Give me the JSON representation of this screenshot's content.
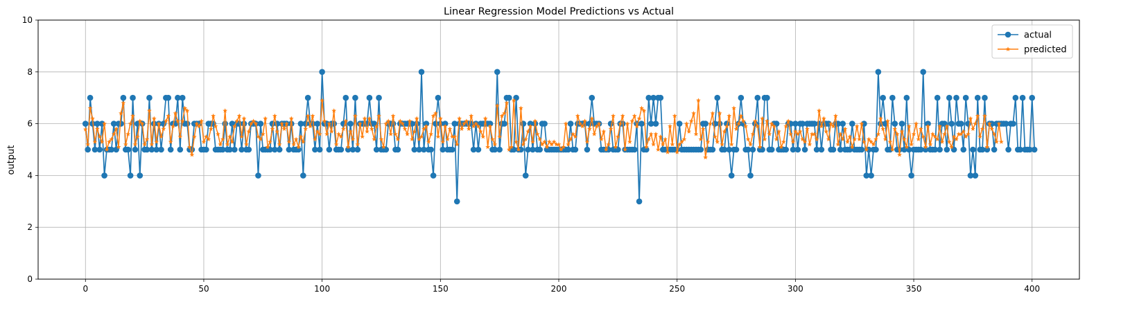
{
  "chart_data": {
    "type": "line",
    "title": "Linear Regression Model Predictions vs Actual",
    "xlabel": "",
    "ylabel": "output",
    "xlim": [
      -20,
      420
    ],
    "ylim": [
      0,
      10
    ],
    "xticks": [
      0,
      50,
      100,
      150,
      200,
      250,
      300,
      350,
      400
    ],
    "yticks": [
      0,
      2,
      4,
      6,
      8,
      10
    ],
    "grid": true,
    "legend_position": "top-right",
    "colors": {
      "actual": "#1f77b4",
      "predicted": "#ff7f0e"
    },
    "x_start": 0,
    "series": [
      {
        "name": "actual",
        "marker": "circle",
        "values": [
          6,
          5,
          7,
          6,
          5,
          6,
          5,
          6,
          4,
          5,
          5,
          5,
          6,
          5,
          6,
          6,
          7,
          5,
          5,
          4,
          7,
          5,
          6,
          4,
          6,
          5,
          5,
          7,
          5,
          6,
          5,
          6,
          5,
          6,
          7,
          7,
          5,
          6,
          6,
          7,
          5,
          7,
          6,
          6,
          5,
          5,
          6,
          6,
          6,
          5,
          5,
          5,
          6,
          6,
          6,
          5,
          5,
          5,
          5,
          6,
          5,
          5,
          6,
          5,
          6,
          6,
          5,
          6,
          5,
          5,
          6,
          6,
          6,
          4,
          6,
          5,
          5,
          5,
          5,
          6,
          5,
          6,
          5,
          6,
          6,
          6,
          5,
          6,
          5,
          5,
          5,
          6,
          4,
          6,
          7,
          6,
          6,
          5,
          6,
          5,
          8,
          6,
          6,
          5,
          6,
          6,
          5,
          5,
          5,
          6,
          7,
          5,
          6,
          5,
          7,
          5,
          6,
          6,
          6,
          6,
          7,
          6,
          6,
          5,
          7,
          5,
          5,
          5,
          6,
          6,
          6,
          5,
          5,
          6,
          6,
          6,
          6,
          6,
          6,
          5,
          6,
          5,
          8,
          5,
          6,
          5,
          5,
          4,
          6,
          7,
          6,
          5,
          6,
          5,
          5,
          5,
          6,
          3,
          6,
          6,
          6,
          6,
          6,
          6,
          5,
          6,
          5,
          6,
          6,
          6,
          6,
          6,
          5,
          5,
          8,
          5,
          6,
          6,
          7,
          7,
          5,
          5,
          7,
          5,
          5,
          6,
          4,
          5,
          6,
          5,
          6,
          5,
          5,
          6,
          6,
          5,
          5,
          5,
          5,
          5,
          5,
          5,
          5,
          5,
          5,
          6,
          5,
          5,
          6,
          6,
          6,
          6,
          5,
          6,
          7,
          6,
          6,
          6,
          5,
          5,
          5,
          5,
          6,
          5,
          5,
          5,
          6,
          6,
          5,
          5,
          5,
          5,
          5,
          6,
          3,
          6,
          5,
          5,
          7,
          6,
          7,
          6,
          7,
          7,
          5,
          5,
          5,
          5,
          5,
          5,
          5,
          6,
          5,
          5,
          5,
          5,
          5,
          5,
          5,
          5,
          5,
          6,
          6,
          5,
          5,
          5,
          6,
          7,
          6,
          5,
          5,
          6,
          5,
          4,
          5,
          5,
          6,
          7,
          6,
          5,
          5,
          4,
          5,
          6,
          7,
          5,
          5,
          7,
          7,
          5,
          5,
          6,
          6,
          5,
          5,
          5,
          5,
          6,
          6,
          5,
          6,
          5,
          6,
          6,
          5,
          6,
          6,
          6,
          6,
          5,
          6,
          5,
          6,
          6,
          6,
          5,
          5,
          6,
          6,
          5,
          6,
          5,
          5,
          5,
          6,
          5,
          5,
          5,
          5,
          6,
          4,
          5,
          4,
          5,
          5,
          8,
          6,
          7,
          6,
          5,
          5,
          7,
          6,
          5,
          5,
          6,
          5,
          7,
          5,
          4,
          5,
          5,
          5,
          5,
          8,
          5,
          6,
          5,
          5,
          5,
          7,
          5,
          6,
          6,
          5,
          7,
          6,
          5,
          7,
          6,
          6,
          5,
          7,
          6,
          4,
          5,
          4,
          7,
          5,
          5,
          7,
          5,
          6,
          6,
          5,
          6,
          6,
          6,
          6,
          6,
          5,
          6,
          6,
          7,
          5,
          5,
          7,
          5,
          5,
          5,
          7,
          5
        ]
      },
      {
        "name": "predicted",
        "marker": "star",
        "values": [
          5.78,
          5.2,
          6.6,
          6.2,
          5.3,
          5.8,
          5.5,
          5.3,
          6.0,
          5.0,
          5.3,
          5.4,
          5.6,
          5.8,
          5.1,
          6.4,
          6.8,
          5.2,
          5.6,
          6.0,
          6.3,
          5.2,
          5.5,
          6.1,
          6.0,
          5.2,
          5.4,
          6.5,
          5.2,
          6.2,
          5.3,
          6.0,
          5.5,
          5.8,
          6.1,
          6.3,
          5.3,
          5.9,
          6.4,
          6.1,
          5.5,
          6.1,
          6.6,
          6.5,
          5.1,
          4.8,
          5.5,
          6.0,
          5.9,
          6.1,
          5.3,
          5.5,
          5.4,
          5.8,
          6.3,
          5.9,
          5.6,
          5.2,
          5.4,
          6.5,
          5.2,
          5.5,
          5.3,
          5.9,
          6.1,
          6.3,
          5.5,
          6.2,
          5.2,
          5.7,
          6.0,
          6.1,
          6.0,
          5.5,
          5.4,
          5.6,
          6.2,
          5.1,
          5.3,
          5.8,
          6.3,
          5.7,
          5.2,
          6.0,
          5.8,
          6.0,
          5.3,
          6.2,
          5.2,
          5.4,
          5.1,
          5.5,
          5.3,
          5.8,
          6.3,
          5.9,
          6.3,
          5.4,
          5.7,
          5.6,
          6.9,
          6.1,
          5.6,
          6.0,
          5.7,
          6.5,
          5.2,
          5.6,
          5.5,
          5.8,
          6.1,
          5.1,
          5.7,
          5.4,
          6.3,
          5.2,
          6.0,
          5.5,
          6.2,
          5.7,
          6.2,
          5.8,
          5.4,
          5.9,
          6.3,
          5.4,
          5.1,
          6.0,
          6.1,
          5.6,
          6.3,
          5.6,
          5.4,
          6.1,
          6.0,
          5.8,
          5.6,
          6.1,
          5.4,
          5.7,
          6.2,
          5.4,
          5.5,
          5.8,
          5.9,
          5.3,
          5.6,
          6.3,
          6.4,
          5.5,
          6.2,
          5.3,
          5.9,
          5.4,
          5.8,
          5.5,
          5.5,
          5.2,
          6.2,
          5.8,
          6.0,
          6.1,
          5.8,
          6.3,
          5.9,
          6.0,
          5.9,
          5.7,
          5.5,
          6.2,
          5.1,
          5.9,
          5.4,
          5.2,
          6.7,
          5.5,
          6.3,
          6.4,
          6.8,
          5.0,
          5.1,
          6.9,
          5.3,
          5.0,
          6.6,
          5.2,
          5.4,
          5.7,
          5.9,
          5.3,
          6.1,
          5.6,
          5.4,
          5.2,
          5.3,
          5.1,
          5.3,
          5.2,
          5.3,
          5.2,
          5.2,
          5.0,
          5.1,
          6.0,
          5.2,
          5.4,
          5.6,
          5.5,
          6.3,
          6.0,
          5.9,
          6.1,
          5.3,
          5.8,
          6.2,
          5.6,
          5.9,
          6.0,
          5.4,
          5.7,
          5.0,
          5.2,
          5.8,
          6.3,
          5.1,
          5.5,
          6.0,
          6.3,
          5.0,
          6.0,
          5.3,
          6.1,
          6.3,
          5.9,
          6.2,
          6.6,
          6.5,
          5.1,
          5.4,
          5.6,
          5.2,
          5.6,
          5.0,
          5.5,
          5.2,
          5.4,
          4.9,
          5.9,
          5.2,
          6.3,
          4.9,
          5.2,
          5.3,
          5.4,
          6.0,
          5.7,
          6.1,
          6.4,
          5.6,
          6.9,
          5.4,
          5.8,
          4.7,
          5.3,
          6.0,
          6.4,
          5.5,
          5.3,
          6.4,
          5.2,
          5.7,
          5.9,
          6.3,
          5.2,
          6.6,
          5.8,
          6.0,
          6.3,
          6.1,
          5.9,
          5.4,
          5.2,
          5.6,
          6.1,
          5.9,
          5.1,
          6.2,
          5.4,
          6.1,
          5.6,
          6.0,
          5.9,
          5.4,
          5.7,
          5.1,
          5.3,
          5.9,
          6.1,
          5.6,
          5.3,
          5.7,
          5.6,
          5.7,
          5.4,
          5.3,
          5.8,
          5.2,
          5.6,
          5.6,
          5.4,
          6.5,
          5.9,
          6.2,
          5.7,
          5.4,
          6.0,
          5.9,
          6.3,
          5.2,
          5.6,
          5.4,
          5.8,
          5.3,
          5.5,
          5.1,
          5.4,
          5.9,
          5.4,
          6.0,
          5.3,
          5.0,
          5.4,
          5.3,
          5.2,
          5.4,
          5.6,
          6.2,
          5.8,
          5.4,
          6.1,
          5.3,
          5.0,
          5.8,
          5.6,
          4.8,
          5.7,
          5.4,
          5.1,
          5.9,
          5.2,
          5.6,
          6.0,
          5.4,
          5.8,
          5.5,
          5.1,
          5.9,
          5.2,
          5.6,
          5.5,
          5.4,
          5.9,
          5.3,
          5.6,
          5.9,
          5.3,
          5.1,
          5.5,
          5.4,
          5.6,
          5.6,
          5.7,
          5.5,
          5.6,
          6.2,
          5.8,
          6.0,
          6.3,
          5.5,
          5.8,
          6.3,
          5.1,
          6.0,
          5.8,
          5.6,
          5.3,
          6.0,
          5.3
        ]
      }
    ]
  }
}
